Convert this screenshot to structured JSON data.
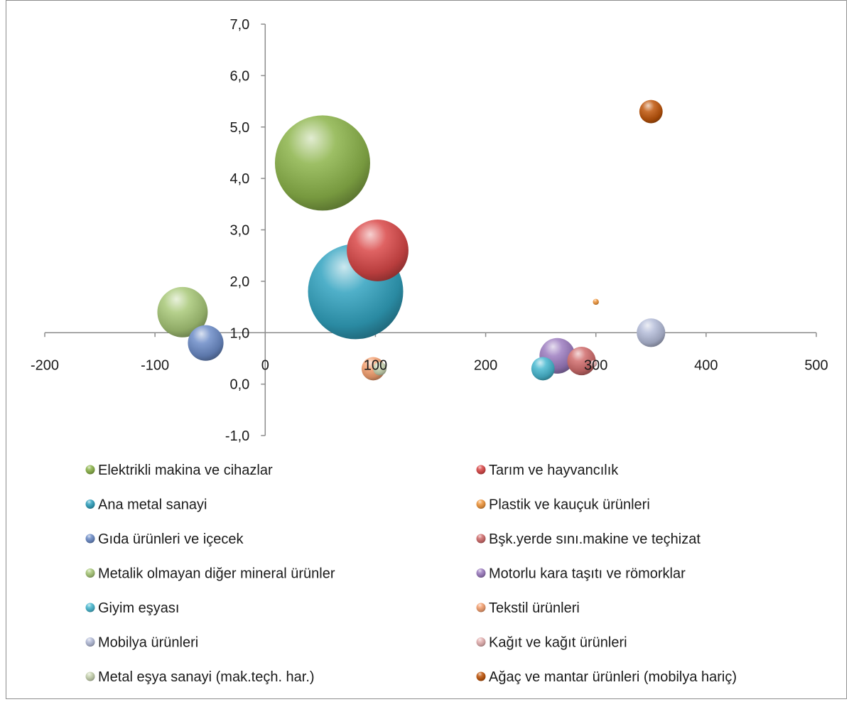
{
  "chart_data": {
    "type": "bubble",
    "title": "",
    "xlabel": "",
    "ylabel": "",
    "xlim": [
      -200,
      500
    ],
    "ylim": [
      -1.0,
      7.0
    ],
    "x_ticks": [
      "-200",
      "-100",
      "0",
      "100",
      "200",
      "300",
      "400",
      "500"
    ],
    "y_ticks": [
      "-1,0",
      "0,0",
      "1,0",
      "2,0",
      "3,0",
      "4,0",
      "5,0",
      "6,0",
      "7,0"
    ],
    "x_tick_values": [
      -200,
      -100,
      0,
      100,
      200,
      300,
      400,
      500
    ],
    "y_tick_values": [
      -1,
      0,
      1,
      2,
      3,
      4,
      5,
      6,
      7
    ],
    "axis_cross_y": 1.0,
    "grid": false,
    "legend_position": "bottom",
    "series": [
      {
        "name": "Elektrikli makina ve cihazlar",
        "x": 52,
        "y": 4.3,
        "size": 100,
        "color": "#8cb44a"
      },
      {
        "name": "Tarım ve hayvancılık",
        "x": 102,
        "y": 2.6,
        "size": 42,
        "color": "#d94848"
      },
      {
        "name": "Ana metal sanayi",
        "x": 82,
        "y": 1.8,
        "size": 100,
        "color": "#31a2bf"
      },
      {
        "name": "Plastik ve kauçuk ürünleri",
        "x": 300,
        "y": 1.6,
        "size": 0.4,
        "color": "#f0963c"
      },
      {
        "name": "Gıda ürünleri ve içecek",
        "x": -54,
        "y": 0.8,
        "size": 14,
        "color": "#6c8cc8"
      },
      {
        "name": "Bşk.yerde sını.makine ve teçhizat",
        "x": 287,
        "y": 0.45,
        "size": 9,
        "color": "#d06c6c"
      },
      {
        "name": "Metalik olmayan diğer mineral ürünler",
        "x": -75,
        "y": 1.4,
        "size": 28,
        "color": "#a8c878"
      },
      {
        "name": "Motorlu kara taşıtı ve römorklar",
        "x": 265,
        "y": 0.55,
        "size": 14,
        "color": "#9c7cc0"
      },
      {
        "name": "Giyim eşyası",
        "x": 252,
        "y": 0.3,
        "size": 6,
        "color": "#48b8d0"
      },
      {
        "name": "Tekstil ürünleri",
        "x": 98,
        "y": 0.3,
        "size": 6,
        "color": "#f4a070"
      },
      {
        "name": "Mobilya ürünleri",
        "x": 350,
        "y": 1.0,
        "size": 9,
        "color": "#b4bcd8"
      },
      {
        "name": "Kağıt ve kağıt ürünleri",
        "x": 298,
        "y": 0.4,
        "size": 0.5,
        "color": "#e4b0b0"
      },
      {
        "name": "Metal eşya sanayi (mak.teçh. har.)",
        "x": 104,
        "y": 0.3,
        "size": 2,
        "color": "#c8d4b0"
      },
      {
        "name": "Ağaç ve mantar ürünleri (mobilya hariç)",
        "x": 350,
        "y": 5.3,
        "size": 6,
        "color": "#c0560a"
      }
    ]
  }
}
